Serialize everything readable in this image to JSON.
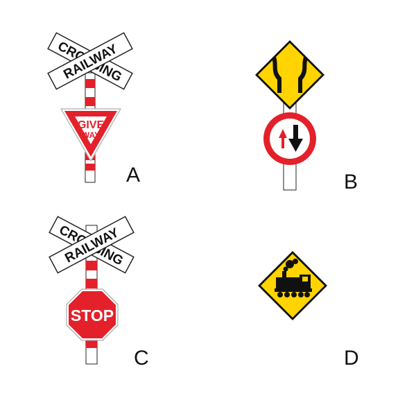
{
  "options": [
    {
      "letter": "A",
      "crossbuck": {
        "word1": "RAILWAY",
        "word2": "CROSSING"
      },
      "sign": {
        "type": "give-way",
        "line1": "GIVE",
        "line2": "WAY"
      }
    },
    {
      "letter": "B",
      "signs": [
        "narrow-bridge-icon",
        "priority-to-oncoming-traffic-icon"
      ]
    },
    {
      "letter": "C",
      "crossbuck": {
        "word1": "RAILWAY",
        "word2": "CROSSING"
      },
      "sign": {
        "type": "stop",
        "label": "STOP"
      }
    },
    {
      "letter": "D",
      "signs": [
        "steam-train-icon"
      ]
    }
  ],
  "colors": {
    "red": "#e4202a",
    "yellow": "#ffd400",
    "black": "#111111",
    "white": "#ffffff"
  }
}
